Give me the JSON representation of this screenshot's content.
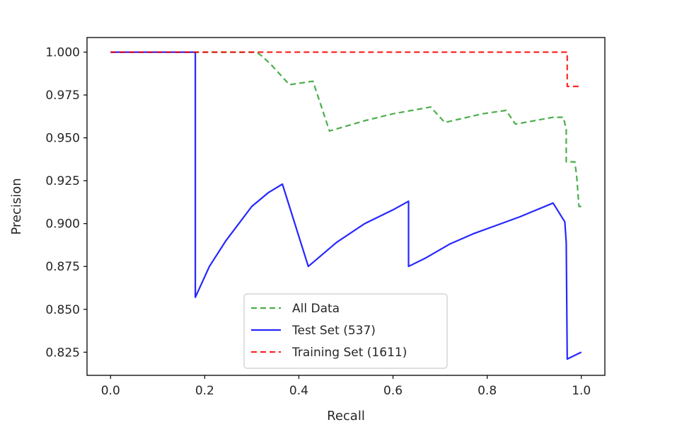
{
  "chart_data": {
    "type": "line",
    "title": "",
    "xlabel": "Recall",
    "ylabel": "Precision",
    "xlim": [
      -0.05,
      1.05
    ],
    "ylim": [
      0.8115,
      1.0085
    ],
    "xticks": [
      0.0,
      0.2,
      0.4,
      0.6,
      0.8,
      1.0
    ],
    "xtick_labels": [
      "0.0",
      "0.2",
      "0.4",
      "0.6",
      "0.8",
      "1.0"
    ],
    "yticks": [
      0.825,
      0.85,
      0.875,
      0.9,
      0.925,
      0.95,
      0.975,
      1.0
    ],
    "ytick_labels": [
      "0.825",
      "0.850",
      "0.875",
      "0.900",
      "0.925",
      "0.950",
      "0.975",
      "1.000"
    ],
    "grid": false,
    "legend_position": "lower center",
    "series": [
      {
        "name": "All Data",
        "color": "#2ca02c",
        "style": "dashed",
        "x": [
          0.0,
          0.31,
          0.32,
          0.34,
          0.38,
          0.43,
          0.465,
          0.54,
          0.6,
          0.68,
          0.71,
          0.79,
          0.84,
          0.86,
          0.94,
          0.962,
          0.968,
          0.968,
          0.972,
          0.986,
          0.99,
          0.995,
          1.0
        ],
        "y": [
          1.0,
          1.0,
          0.998,
          0.993,
          0.981,
          0.983,
          0.954,
          0.96,
          0.964,
          0.968,
          0.959,
          0.964,
          0.966,
          0.958,
          0.962,
          0.962,
          0.955,
          0.936,
          0.936,
          0.936,
          0.928,
          0.91,
          0.91
        ]
      },
      {
        "name": "Test Set (537)",
        "color": "#0000ff",
        "style": "solid",
        "x": [
          0.0,
          0.18,
          0.18,
          0.21,
          0.245,
          0.3,
          0.335,
          0.365,
          0.42,
          0.48,
          0.54,
          0.6,
          0.633,
          0.633,
          0.67,
          0.72,
          0.77,
          0.82,
          0.87,
          0.94,
          0.965,
          0.968,
          0.97,
          1.0
        ],
        "y": [
          1.0,
          1.0,
          0.857,
          0.875,
          0.89,
          0.91,
          0.918,
          0.923,
          0.875,
          0.889,
          0.9,
          0.908,
          0.913,
          0.875,
          0.88,
          0.888,
          0.894,
          0.899,
          0.904,
          0.912,
          0.901,
          0.889,
          0.821,
          0.825
        ]
      },
      {
        "name": "Training Set (1611)",
        "color": "#ff0000",
        "style": "dashed",
        "x": [
          0.0,
          0.97,
          0.97,
          1.0
        ],
        "y": [
          1.0,
          1.0,
          0.98,
          0.98
        ]
      }
    ]
  }
}
